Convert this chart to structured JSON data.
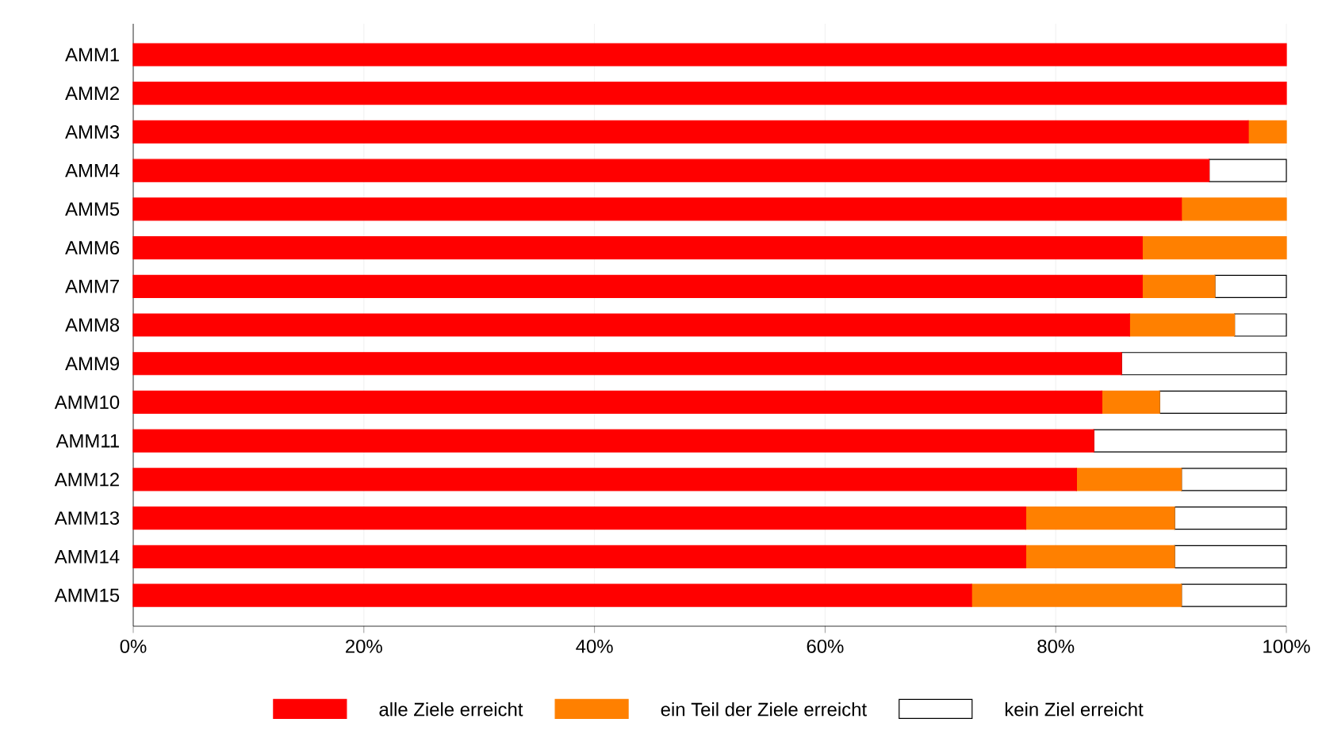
{
  "chart_data": {
    "type": "bar",
    "orientation": "horizontal",
    "stacked": true,
    "categories": [
      "AMM1",
      "AMM2",
      "AMM3",
      "AMM4",
      "AMM5",
      "AMM6",
      "AMM7",
      "AMM8",
      "AMM9",
      "AMM10",
      "AMM11",
      "AMM12",
      "AMM13",
      "AMM14",
      "AMM15"
    ],
    "series": [
      {
        "name": "alle Ziele erreicht",
        "color": "#ff0000",
        "values": [
          100,
          100,
          96.7,
          93.3,
          90.9,
          87.5,
          87.5,
          86.4,
          85.7,
          84.0,
          83.3,
          81.8,
          77.4,
          77.4,
          72.7
        ]
      },
      {
        "name": "ein Teil der Ziele erreicht",
        "color": "#ff8000",
        "values": [
          0,
          0,
          3.3,
          0,
          9.1,
          12.5,
          6.3,
          9.1,
          0,
          5.0,
          0,
          9.1,
          12.9,
          12.9,
          18.2
        ]
      },
      {
        "name": "kein Ziel erreicht",
        "color": "#ffffff",
        "values": [
          0,
          0,
          0,
          6.7,
          0,
          0,
          6.2,
          4.5,
          14.3,
          11.0,
          16.7,
          9.1,
          9.7,
          9.7,
          9.1
        ]
      }
    ],
    "xlim": [
      0,
      100
    ],
    "xticks": [
      {
        "value": 0,
        "label": "0%"
      },
      {
        "value": 20,
        "label": "20%"
      },
      {
        "value": 40,
        "label": "40%"
      },
      {
        "value": 60,
        "label": "60%"
      },
      {
        "value": 80,
        "label": "80%"
      },
      {
        "value": 100,
        "label": "100%"
      }
    ],
    "grid": "x",
    "legend": "bottom"
  }
}
